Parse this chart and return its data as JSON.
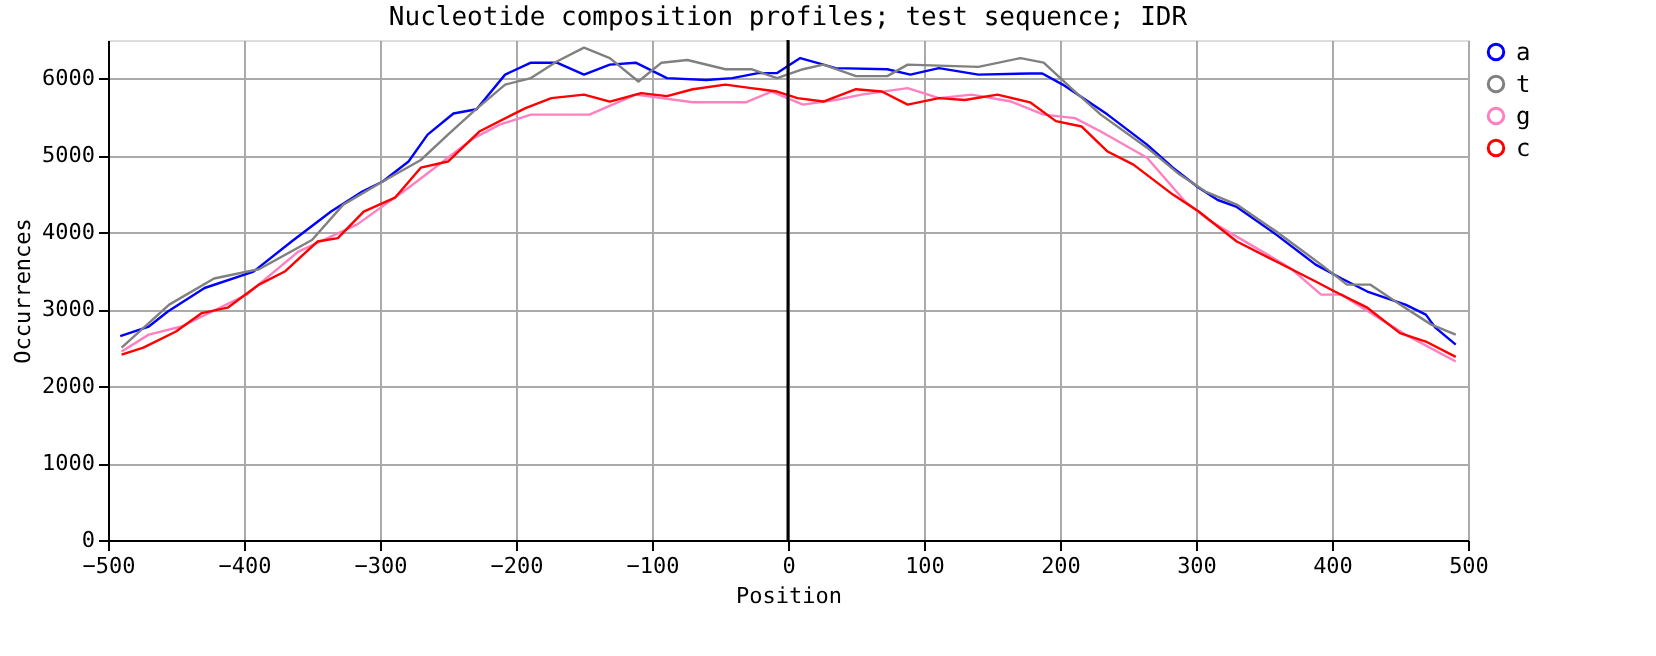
{
  "chart_data": {
    "type": "line",
    "title": "Nucleotide composition profiles; test sequence; IDR",
    "xlabel": "Position",
    "ylabel": "Occurrences",
    "xlim": [
      -500,
      500
    ],
    "xticks": [
      -500,
      -400,
      -300,
      -200,
      -100,
      0,
      100,
      200,
      300,
      400,
      500
    ],
    "ylim": [
      0,
      6500
    ],
    "yticks": [
      0,
      1000,
      2000,
      3000,
      4000,
      5000,
      6000
    ],
    "grid": true,
    "legend": "top right",
    "ref_lines": [
      {
        "axis": "x",
        "value": 0,
        "color": "#000000"
      }
    ],
    "series": [
      {
        "name": "a",
        "color": "#0000ff",
        "x": [
          -491,
          -470,
          -456,
          -429,
          -393,
          -365,
          -336,
          -313,
          -298,
          -279,
          -265,
          -246,
          -229,
          -208,
          -189,
          -170,
          -150,
          -131,
          -112,
          -89,
          -60,
          -41,
          -22,
          -8,
          9,
          26,
          35,
          73,
          90,
          111,
          140,
          178,
          187,
          202,
          235,
          264,
          283,
          302,
          316,
          330,
          359,
          388,
          407,
          426,
          454,
          469,
          476,
          491
        ],
        "values": [
          2650,
          2775,
          2970,
          3276,
          3490,
          3880,
          4270,
          4530,
          4660,
          4920,
          5270,
          5545,
          5600,
          6050,
          6205,
          6205,
          6050,
          6180,
          6205,
          6005,
          5980,
          6005,
          6070,
          6070,
          6265,
          6180,
          6135,
          6120,
          6050,
          6135,
          6050,
          6065,
          6065,
          5920,
          5530,
          5140,
          4840,
          4580,
          4420,
          4330,
          3970,
          3580,
          3400,
          3230,
          3060,
          2930,
          2760,
          2540
        ]
      },
      {
        "name": "t",
        "color": "#808080",
        "x": [
          -490,
          -455,
          -422,
          -389,
          -350,
          -327,
          -298,
          -270,
          -250,
          -231,
          -208,
          -189,
          -170,
          -150,
          -131,
          -110,
          -93,
          -74,
          -46,
          -27,
          -8,
          11,
          26,
          50,
          73,
          88,
          140,
          171,
          188,
          211,
          230,
          264,
          288,
          307,
          330,
          359,
          392,
          411,
          428,
          450,
          473,
          491
        ],
        "values": [
          2500,
          3060,
          3400,
          3520,
          3900,
          4360,
          4660,
          4940,
          5270,
          5575,
          5920,
          6005,
          6220,
          6400,
          6265,
          5960,
          6205,
          6240,
          6120,
          6120,
          6005,
          6120,
          6180,
          6030,
          6030,
          6180,
          6150,
          6265,
          6205,
          5830,
          5530,
          5100,
          4750,
          4530,
          4360,
          4010,
          3580,
          3320,
          3320,
          3060,
          2800,
          2670
        ]
      },
      {
        "name": "g",
        "color": "#ff80c0",
        "x": [
          -490,
          -470,
          -446,
          -398,
          -360,
          -317,
          -279,
          -231,
          -212,
          -189,
          -146,
          -112,
          -70,
          -31,
          -12,
          11,
          35,
          54,
          88,
          111,
          135,
          164,
          188,
          211,
          230,
          264,
          292,
          311,
          340,
          369,
          392,
          407,
          454,
          491
        ],
        "values": [
          2450,
          2670,
          2775,
          3190,
          3750,
          4100,
          4580,
          5225,
          5400,
          5530,
          5530,
          5790,
          5690,
          5690,
          5830,
          5660,
          5720,
          5790,
          5875,
          5745,
          5790,
          5700,
          5530,
          5485,
          5310,
          4970,
          4400,
          4140,
          3840,
          3540,
          3190,
          3190,
          2670,
          2320
        ]
      },
      {
        "name": "c",
        "color": "#ff0000",
        "x": [
          -490,
          -474,
          -450,
          -431,
          -412,
          -389,
          -370,
          -346,
          -331,
          -312,
          -289,
          -270,
          -250,
          -227,
          -193,
          -174,
          -150,
          -131,
          -108,
          -89,
          -70,
          -46,
          -27,
          -8,
          7,
          26,
          50,
          69,
          88,
          111,
          130,
          154,
          178,
          197,
          216,
          235,
          254,
          283,
          302,
          330,
          359,
          388,
          402,
          426,
          450,
          469,
          491
        ],
        "values": [
          2410,
          2500,
          2710,
          2950,
          3020,
          3320,
          3490,
          3880,
          3925,
          4270,
          4450,
          4840,
          4920,
          5310,
          5615,
          5745,
          5790,
          5700,
          5810,
          5770,
          5860,
          5920,
          5875,
          5830,
          5745,
          5700,
          5860,
          5830,
          5660,
          5745,
          5720,
          5790,
          5690,
          5445,
          5375,
          5050,
          4880,
          4490,
          4270,
          3880,
          3620,
          3360,
          3230,
          3020,
          2690,
          2580,
          2380
        ]
      }
    ]
  }
}
